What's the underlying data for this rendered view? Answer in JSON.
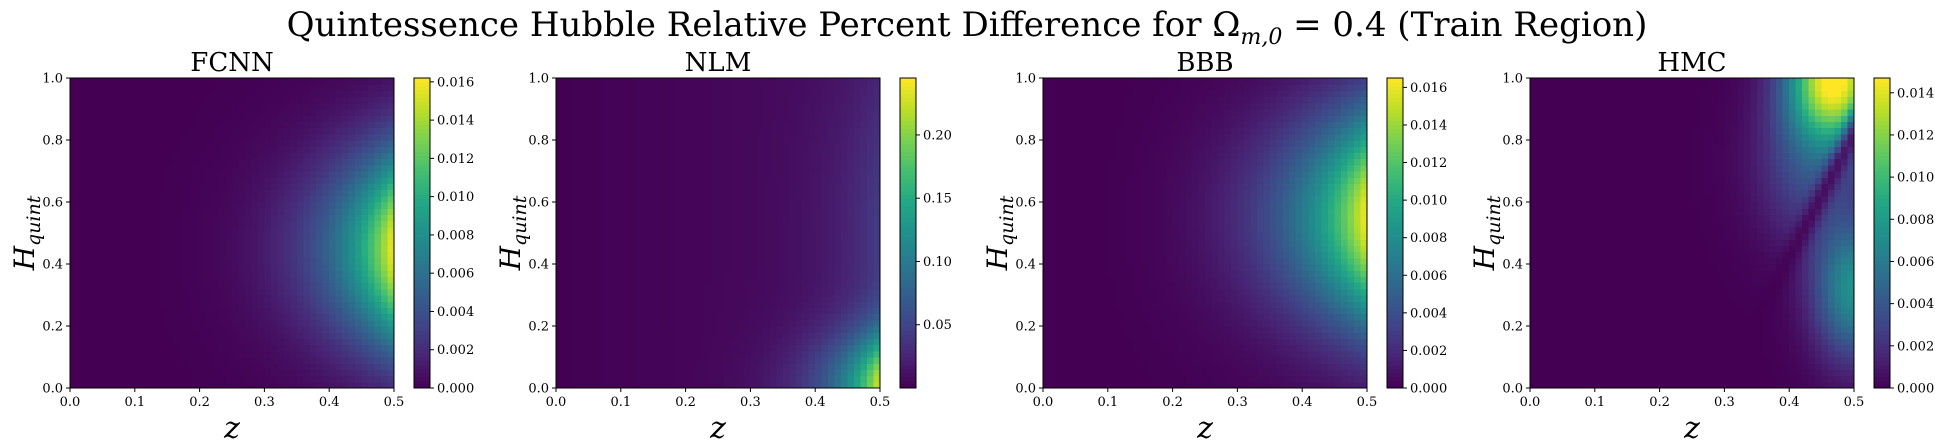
{
  "figure": {
    "title_main": "Quintessence Hubble Relative Percent Difference for Ω",
    "title_sub": "m,0",
    "title_rest": " = 0.4 (Train Region)"
  },
  "chart_data": [
    {
      "type": "heatmap",
      "title": "FCNN",
      "xlabel": "z",
      "ylabel_main": "H",
      "ylabel_sub": "quint",
      "xlim": [
        0.0,
        0.5
      ],
      "ylim": [
        0.0,
        1.0
      ],
      "xticks": [
        "0.0",
        "0.1",
        "0.2",
        "0.3",
        "0.4",
        "0.5"
      ],
      "yticks": [
        "0.0",
        "0.2",
        "0.4",
        "0.6",
        "0.8",
        "1.0"
      ],
      "colorbar": {
        "min": 0.0,
        "max": 0.0162,
        "ticks": [
          0.0,
          0.002,
          0.004,
          0.006,
          0.008,
          0.01,
          0.012,
          0.014,
          0.016
        ],
        "tick_labels": [
          "0.000",
          "0.002",
          "0.004",
          "0.006",
          "0.008",
          "0.010",
          "0.012",
          "0.014",
          "0.016"
        ]
      },
      "colormap": "viridis",
      "pattern": {
        "kind": "edge_mid",
        "xpow": 5,
        "center": 0.45,
        "width": 0.32,
        "base": 0.0,
        "peak": 0.0162,
        "extra": 0.0
      }
    },
    {
      "type": "heatmap",
      "title": "NLM",
      "xlabel": "z",
      "ylabel_main": "H",
      "ylabel_sub": "quint",
      "xlim": [
        0.0,
        0.5
      ],
      "ylim": [
        0.0,
        1.0
      ],
      "xticks": [
        "0.0",
        "0.1",
        "0.2",
        "0.3",
        "0.4",
        "0.5"
      ],
      "yticks": [
        "0.0",
        "0.2",
        "0.4",
        "0.6",
        "0.8",
        "1.0"
      ],
      "colorbar": {
        "min": 0.0,
        "max": 0.245,
        "ticks": [
          0.05,
          0.1,
          0.15,
          0.2
        ],
        "tick_labels": [
          "0.05",
          "0.10",
          "0.15",
          "0.20"
        ]
      },
      "colormap": "viridis",
      "pattern": {
        "kind": "edge_bottom",
        "xpow": 7,
        "center": 0.0,
        "width": 0.18,
        "base": 0.008,
        "peak": 0.245,
        "extra": 0.01
      }
    },
    {
      "type": "heatmap",
      "title": "BBB",
      "xlabel": "z",
      "ylabel_main": "H",
      "ylabel_sub": "quint",
      "xlim": [
        0.0,
        0.5
      ],
      "ylim": [
        0.0,
        1.0
      ],
      "xticks": [
        "0.0",
        "0.1",
        "0.2",
        "0.3",
        "0.4",
        "0.5"
      ],
      "yticks": [
        "0.0",
        "0.2",
        "0.4",
        "0.6",
        "0.8",
        "1.0"
      ],
      "colorbar": {
        "min": 0.0,
        "max": 0.0165,
        "ticks": [
          0.0,
          0.002,
          0.004,
          0.006,
          0.008,
          0.01,
          0.012,
          0.014,
          0.016
        ],
        "tick_labels": [
          "0.000",
          "0.002",
          "0.004",
          "0.006",
          "0.008",
          "0.010",
          "0.012",
          "0.014",
          "0.016"
        ]
      },
      "colormap": "viridis",
      "pattern": {
        "kind": "edge_mid",
        "xpow": 4,
        "center": 0.55,
        "width": 0.35,
        "base": 0.0,
        "peak": 0.0165,
        "extra": 0.0
      }
    },
    {
      "type": "heatmap",
      "title": "HMC",
      "xlabel": "z",
      "ylabel_main": "H",
      "ylabel_sub": "quint",
      "xlim": [
        0.0,
        0.5
      ],
      "ylim": [
        0.0,
        1.0
      ],
      "xticks": [
        "0.0",
        "0.1",
        "0.2",
        "0.3",
        "0.4",
        "0.5"
      ],
      "yticks": [
        "0.0",
        "0.2",
        "0.4",
        "0.6",
        "0.8",
        "1.0"
      ],
      "colorbar": {
        "min": 0.0,
        "max": 0.0147,
        "ticks": [
          0.0,
          0.002,
          0.004,
          0.006,
          0.008,
          0.01,
          0.012,
          0.014
        ],
        "tick_labels": [
          "0.000",
          "0.002",
          "0.004",
          "0.006",
          "0.008",
          "0.010",
          "0.012",
          "0.014"
        ]
      },
      "colormap": "viridis",
      "pattern": {
        "kind": "hmc",
        "xpow": 2,
        "center": 0.0,
        "width": 0.0,
        "base": 0.0,
        "peak": 0.0147,
        "extra": 0.0
      }
    }
  ]
}
